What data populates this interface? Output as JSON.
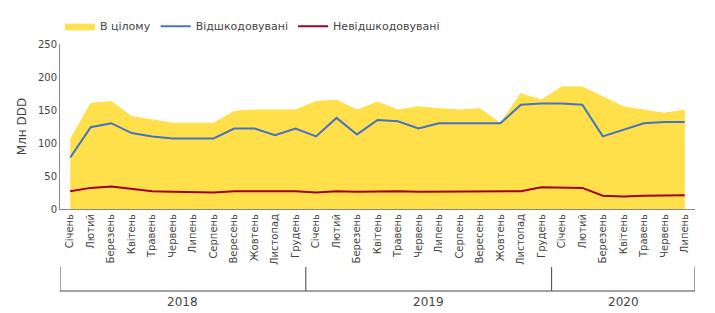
{
  "chart_data": {
    "type": "line",
    "categories": [
      "Січень",
      "Лютий",
      "Березень",
      "Квітень",
      "Травень",
      "Червень",
      "Липень",
      "Серпень",
      "Вересень",
      "Жовтень",
      "Листопад",
      "Грудень",
      "Січень",
      "Лютий",
      "Березень",
      "Квітень",
      "Травень",
      "Червень",
      "Липень",
      "Серпень",
      "Вересень",
      "Жовтень",
      "Листопад",
      "Грудень",
      "Січень",
      "Лютий",
      "Березень",
      "Квітень",
      "Травень",
      "Червень",
      "Липень"
    ],
    "category_groups": [
      {
        "label": "2018",
        "count": 12
      },
      {
        "label": "2019",
        "count": 12
      },
      {
        "label": "2020",
        "count": 7
      }
    ],
    "series": [
      {
        "name": "В цілому",
        "type": "area",
        "color": "#FFE04B",
        "values": [
          105,
          160,
          163,
          140,
          135,
          130,
          130,
          130,
          148,
          150,
          150,
          150,
          163,
          165,
          150,
          162,
          150,
          155,
          152,
          150,
          152,
          130,
          175,
          165,
          185,
          185,
          170,
          155,
          150,
          145,
          150
        ]
      },
      {
        "name": "Відшкодовувані",
        "type": "line",
        "color": "#4472C4",
        "values": [
          78,
          124,
          130,
          115,
          110,
          107,
          107,
          107,
          122,
          122,
          112,
          122,
          110,
          138,
          113,
          135,
          133,
          122,
          130,
          130,
          130,
          130,
          158,
          160,
          160,
          158,
          110,
          120,
          130,
          132,
          132
        ]
      },
      {
        "name": "Невідшкодовувані",
        "type": "line",
        "color": "#A00020",
        "values": [
          27,
          32,
          34,
          30,
          27,
          26,
          25,
          25,
          27,
          27,
          27,
          27,
          25,
          27,
          26,
          27,
          27,
          26,
          26,
          26,
          26,
          26,
          27,
          33,
          33,
          32,
          20,
          19,
          20,
          21,
          21
        ]
      }
    ],
    "ylabel": "Млн DDD",
    "ylim": [
      0,
      250
    ],
    "yticks": [
      0,
      50,
      100,
      150,
      200,
      250
    ],
    "grid": false,
    "legend": "upper left"
  }
}
